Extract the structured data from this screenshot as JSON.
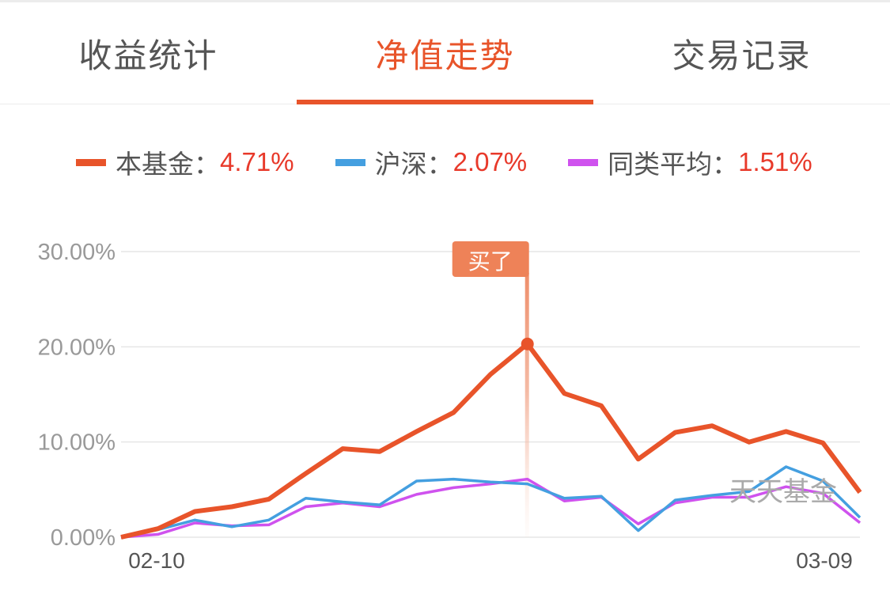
{
  "tabs": [
    {
      "label": "收益统计",
      "active": false
    },
    {
      "label": "净值走势",
      "active": true
    },
    {
      "label": "交易记录",
      "active": false
    }
  ],
  "legend": [
    {
      "name": "本基金",
      "sep": "：",
      "value": "4.71%",
      "color": "#e8542a"
    },
    {
      "name": "沪深",
      "sep": "：",
      "value": "2.07%",
      "color": "#449fe0"
    },
    {
      "name": "同类平均",
      "sep": "：",
      "value": "1.51%",
      "color": "#cf52ee"
    }
  ],
  "marker": {
    "label": "买了",
    "index": 11
  },
  "watermark": "天天基金",
  "chart_data": {
    "type": "line",
    "title": "",
    "xlabel": "",
    "ylabel": "",
    "x_tick_labels": [
      "02-10",
      "03-09"
    ],
    "y_tick_labels": [
      "0.00%",
      "10.00%",
      "20.00%",
      "30.00%"
    ],
    "ylim": [
      0,
      30
    ],
    "grid": true,
    "legend_position": "top",
    "x": [
      0,
      1,
      2,
      3,
      4,
      5,
      6,
      7,
      8,
      9,
      10,
      11,
      12,
      13,
      14,
      15,
      16,
      17,
      18,
      19,
      20
    ],
    "series": [
      {
        "name": "本基金",
        "color": "#e8542a",
        "values": [
          0,
          0.9,
          2.7,
          3.2,
          4.0,
          6.7,
          9.3,
          9.0,
          11.1,
          13.1,
          17.1,
          20.3,
          15.1,
          13.8,
          8.2,
          11.0,
          11.7,
          10.0,
          11.1,
          9.9,
          4.71
        ]
      },
      {
        "name": "沪深",
        "color": "#449fe0",
        "values": [
          0,
          0.8,
          1.8,
          1.1,
          1.8,
          4.1,
          3.7,
          3.4,
          5.9,
          6.1,
          5.8,
          5.6,
          4.1,
          4.3,
          0.7,
          3.9,
          4.4,
          4.8,
          7.4,
          5.9,
          2.07
        ]
      },
      {
        "name": "同类平均",
        "color": "#cf52ee",
        "values": [
          0,
          0.3,
          1.5,
          1.2,
          1.3,
          3.2,
          3.6,
          3.2,
          4.5,
          5.2,
          5.6,
          6.1,
          3.8,
          4.2,
          1.4,
          3.6,
          4.2,
          4.2,
          5.3,
          4.6,
          1.51
        ]
      }
    ],
    "annotations": [
      {
        "text": "买了",
        "x_index": 11
      }
    ]
  }
}
